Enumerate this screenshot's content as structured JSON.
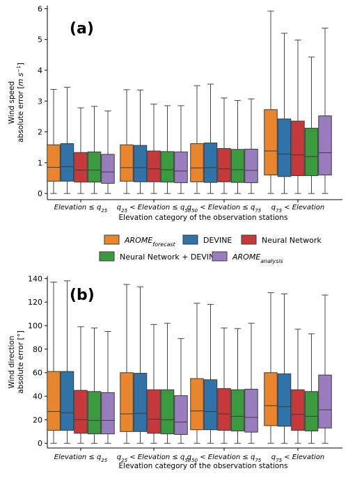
{
  "chart_data": [
    {
      "type": "boxplot",
      "panel_label": "(a)",
      "ylabel_lines": [
        "Wind speed",
        "absolute error [m s⁻¹]"
      ],
      "xlabel": "Elevation category of the observation stations",
      "categories": [
        "Elevation ≤ q25",
        "q25 < Elevation ≤ q50",
        "q50 < Elevation ≤ q75",
        "q75 < Elevation"
      ],
      "yticks": [
        0,
        1,
        2,
        3,
        4,
        5,
        6
      ],
      "ylim": [
        -0.2,
        6.1
      ],
      "grid": false,
      "series": [
        {
          "name": "AROME_forecast",
          "color": "#e8852d",
          "boxes": [
            {
              "whislo": 0,
              "q1": 0.4,
              "med": 0.85,
              "q3": 1.58,
              "whishi": 3.38
            },
            {
              "whislo": 0,
              "q1": 0.4,
              "med": 0.84,
              "q3": 1.58,
              "whishi": 3.37
            },
            {
              "whislo": 0,
              "q1": 0.38,
              "med": 0.83,
              "q3": 1.62,
              "whishi": 3.5
            },
            {
              "whislo": 0,
              "q1": 0.6,
              "med": 1.38,
              "q3": 2.72,
              "whishi": 5.92
            }
          ]
        },
        {
          "name": "DEVINE",
          "color": "#2f73a8",
          "boxes": [
            {
              "whislo": 0,
              "q1": 0.4,
              "med": 0.87,
              "q3": 1.62,
              "whishi": 3.45
            },
            {
              "whislo": 0,
              "q1": 0.38,
              "med": 0.84,
              "q3": 1.56,
              "whishi": 3.36
            },
            {
              "whislo": 0,
              "q1": 0.36,
              "med": 0.84,
              "q3": 1.64,
              "whishi": 3.55
            },
            {
              "whislo": 0,
              "q1": 0.55,
              "med": 1.28,
              "q3": 2.42,
              "whishi": 5.2
            }
          ]
        },
        {
          "name": "Neural Network",
          "color": "#c5393a",
          "boxes": [
            {
              "whislo": 0,
              "q1": 0.37,
              "med": 0.76,
              "q3": 1.33,
              "whishi": 2.78
            },
            {
              "whislo": 0,
              "q1": 0.38,
              "med": 0.8,
              "q3": 1.38,
              "whishi": 2.9
            },
            {
              "whislo": 0,
              "q1": 0.38,
              "med": 0.8,
              "q3": 1.46,
              "whishi": 3.1
            },
            {
              "whislo": 0,
              "q1": 0.58,
              "med": 1.25,
              "q3": 2.35,
              "whishi": 4.98
            }
          ]
        },
        {
          "name": "Neural Network + DEVINE",
          "color": "#3c9a3e",
          "boxes": [
            {
              "whislo": 0,
              "q1": 0.37,
              "med": 0.76,
              "q3": 1.35,
              "whishi": 2.83
            },
            {
              "whislo": 0,
              "q1": 0.37,
              "med": 0.77,
              "q3": 1.36,
              "whishi": 2.85
            },
            {
              "whislo": 0,
              "q1": 0.36,
              "med": 0.77,
              "q3": 1.43,
              "whishi": 3.02
            },
            {
              "whislo": 0,
              "q1": 0.58,
              "med": 1.2,
              "q3": 2.12,
              "whishi": 4.43
            }
          ]
        },
        {
          "name": "AROME_analysis",
          "color": "#9a7dbf",
          "boxes": [
            {
              "whislo": 0,
              "q1": 0.33,
              "med": 0.7,
              "q3": 1.27,
              "whishi": 2.68
            },
            {
              "whislo": 0,
              "q1": 0.35,
              "med": 0.73,
              "q3": 1.35,
              "whishi": 2.85
            },
            {
              "whislo": 0,
              "q1": 0.35,
              "med": 0.75,
              "q3": 1.44,
              "whishi": 3.07
            },
            {
              "whislo": 0,
              "q1": 0.6,
              "med": 1.32,
              "q3": 2.52,
              "whishi": 5.37
            }
          ]
        }
      ]
    },
    {
      "type": "boxplot",
      "panel_label": "(b)",
      "ylabel_lines": [
        "Wind direction",
        "absolute error [°]"
      ],
      "xlabel": "Elevation category of the observation stations",
      "categories": [
        "Elevation ≤ q25",
        "q25 < Elevation ≤ q50",
        "q50 < Elevation ≤ q75",
        "q75 < Elevation"
      ],
      "yticks": [
        0,
        20,
        40,
        60,
        80,
        100,
        120,
        140
      ],
      "ylim": [
        -4,
        142
      ],
      "grid": false,
      "series": [
        {
          "name": "AROME_forecast",
          "color": "#e8852d",
          "boxes": [
            {
              "whislo": 0,
              "q1": 11,
              "med": 27,
              "q3": 61,
              "whishi": 137
            },
            {
              "whislo": 0,
              "q1": 10,
              "med": 25,
              "q3": 60,
              "whishi": 135
            },
            {
              "whislo": 0,
              "q1": 11.5,
              "med": 27.5,
              "q3": 55,
              "whishi": 119
            },
            {
              "whislo": 0,
              "q1": 15,
              "med": 32,
              "q3": 60,
              "whishi": 128
            }
          ]
        },
        {
          "name": "DEVINE",
          "color": "#2f73a8",
          "boxes": [
            {
              "whislo": 0,
              "q1": 11,
              "med": 26,
              "q3": 61,
              "whishi": 138
            },
            {
              "whislo": 0,
              "q1": 10,
              "med": 25.5,
              "q3": 59.5,
              "whishi": 133
            },
            {
              "whislo": 0,
              "q1": 11.5,
              "med": 27,
              "q3": 54,
              "whishi": 118
            },
            {
              "whislo": 0,
              "q1": 14.5,
              "med": 31,
              "q3": 59,
              "whishi": 127
            }
          ]
        },
        {
          "name": "Neural Network",
          "color": "#c5393a",
          "boxes": [
            {
              "whislo": 0,
              "q1": 8.5,
              "med": 20,
              "q3": 45,
              "whishi": 99
            },
            {
              "whislo": 0,
              "q1": 8.5,
              "med": 20.5,
              "q3": 45.5,
              "whishi": 101
            },
            {
              "whislo": 0,
              "q1": 11,
              "med": 25,
              "q3": 46.5,
              "whishi": 98
            },
            {
              "whislo": 0,
              "q1": 11,
              "med": 24.5,
              "q3": 45.5,
              "whishi": 97
            }
          ]
        },
        {
          "name": "Neural Network + DEVINE",
          "color": "#3c9a3e",
          "boxes": [
            {
              "whislo": 0,
              "q1": 8,
              "med": 19.5,
              "q3": 44,
              "whishi": 98
            },
            {
              "whislo": 0,
              "q1": 8,
              "med": 20,
              "q3": 45.5,
              "whishi": 102
            },
            {
              "whislo": 0,
              "q1": 10.5,
              "med": 23,
              "q3": 45.5,
              "whishi": 97.5
            },
            {
              "whislo": 0,
              "q1": 10.5,
              "med": 23,
              "q3": 44,
              "whishi": 93
            }
          ]
        },
        {
          "name": "AROME_analysis",
          "color": "#9a7dbf",
          "boxes": [
            {
              "whislo": 0,
              "q1": 8,
              "med": 19.5,
              "q3": 43,
              "whishi": 95
            },
            {
              "whislo": 0,
              "q1": 7.5,
              "med": 18,
              "q3": 40.5,
              "whishi": 89
            },
            {
              "whislo": 0,
              "q1": 9.5,
              "med": 22,
              "q3": 46,
              "whishi": 102
            },
            {
              "whislo": 0,
              "q1": 13,
              "med": 28.5,
              "q3": 58,
              "whishi": 126
            }
          ]
        }
      ]
    }
  ],
  "legend": {
    "entries": [
      {
        "base": "AROME",
        "sub": "forecast",
        "color": "#e8852d"
      },
      {
        "base": "DEVINE",
        "sub": "",
        "color": "#2f73a8"
      },
      {
        "base": "Neural Network",
        "sub": "",
        "color": "#c5393a"
      },
      {
        "base": "Neural Network + DEVINE",
        "sub": "",
        "color": "#3c9a3e"
      },
      {
        "base": "AROME",
        "sub": "analysis",
        "color": "#9a7dbf"
      }
    ]
  }
}
